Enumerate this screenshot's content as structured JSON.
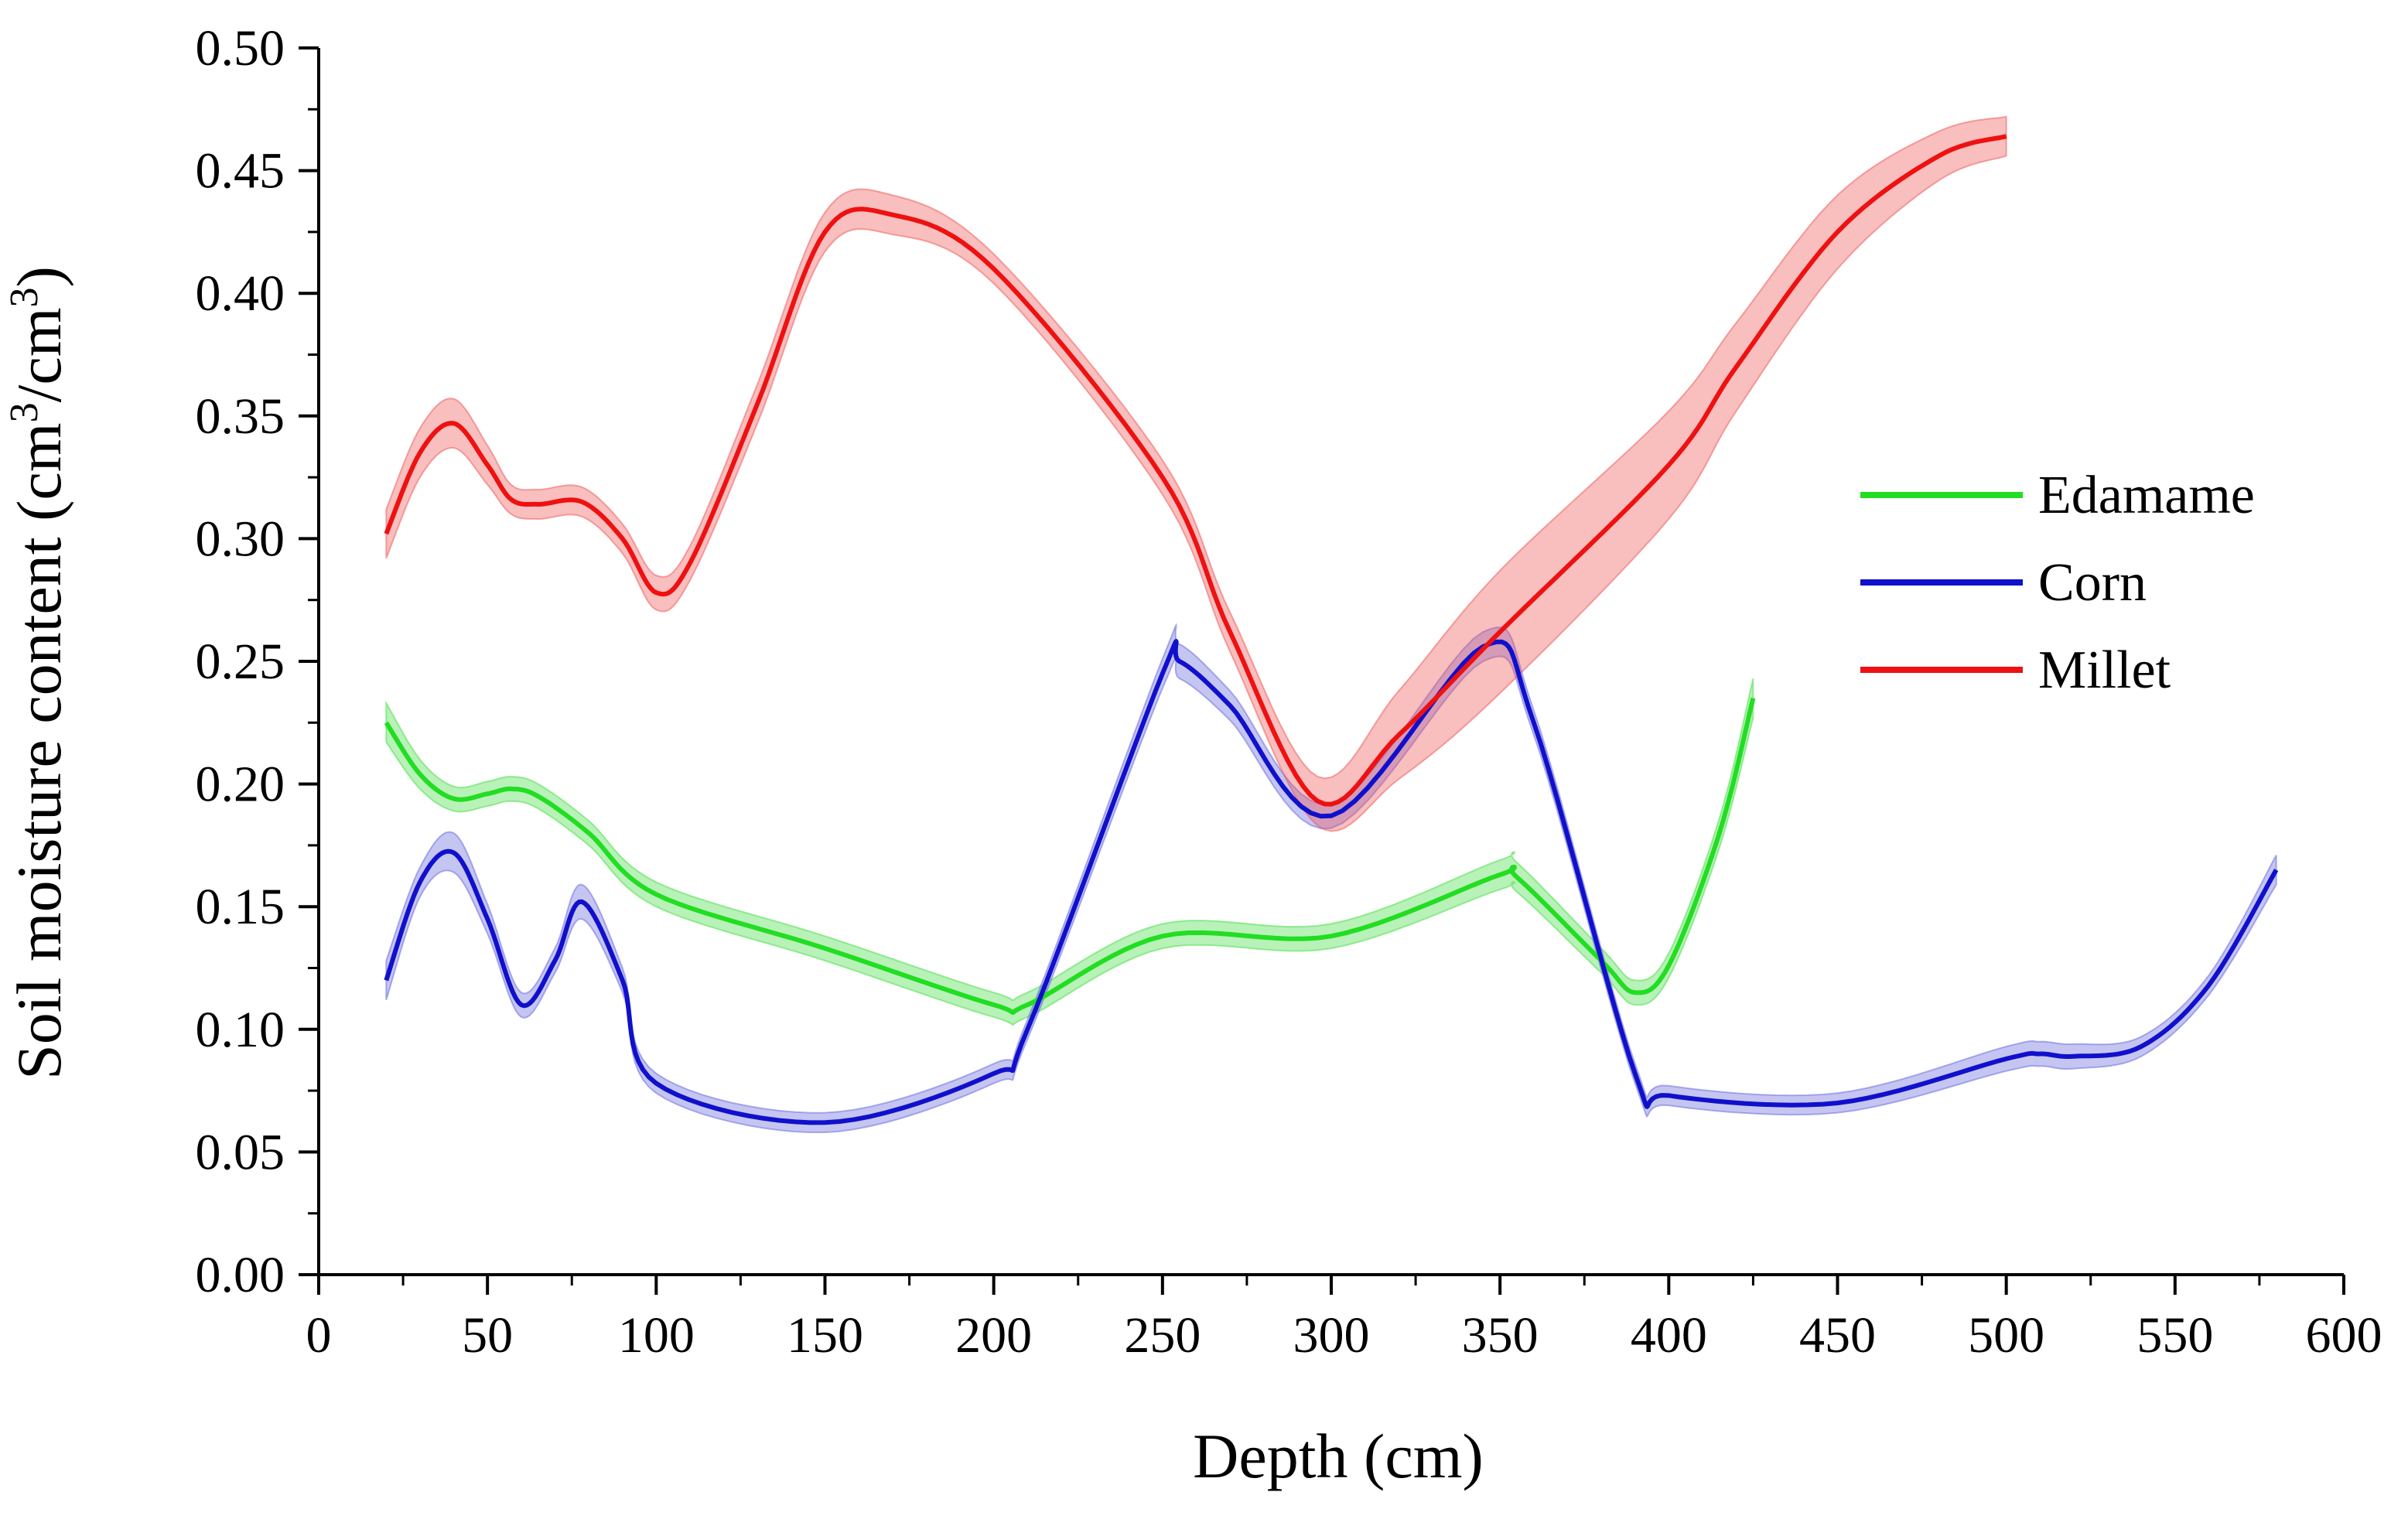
{
  "chart_data": {
    "type": "line",
    "title": "",
    "xlabel": "Depth (cm)",
    "ylabel": "Soil moisture content (cm³/cm³)",
    "ylabel_parts": {
      "a": "Soil moisture content (cm",
      "sup1": "3",
      "b": "/cm",
      "sup2": "3",
      "c": ")"
    },
    "xlim": [
      0,
      600
    ],
    "ylim": [
      0.0,
      0.5
    ],
    "x_ticks": [
      0,
      50,
      100,
      150,
      200,
      250,
      300,
      350,
      400,
      450,
      500,
      550,
      600
    ],
    "x_tick_labels": [
      "0",
      "50",
      "100",
      "150",
      "200",
      "250",
      "300",
      "350",
      "400",
      "450",
      "500",
      "550",
      "600"
    ],
    "y_ticks": [
      0.0,
      0.05,
      0.1,
      0.15,
      0.2,
      0.25,
      0.3,
      0.35,
      0.4,
      0.45,
      0.5
    ],
    "y_tick_labels": [
      "0.00",
      "0.05",
      "0.10",
      "0.15",
      "0.20",
      "0.25",
      "0.30",
      "0.35",
      "0.40",
      "0.45",
      "0.50"
    ],
    "grid": false,
    "legend_position": "right",
    "series": [
      {
        "name": "Edamame",
        "color": "#22dd22",
        "band_color": "#44dd44",
        "x": [
          20,
          30,
          40,
          50,
          57,
          65,
          80,
          100,
          150,
          200,
          210,
          250,
          300,
          350,
          355,
          380,
          390,
          400,
          415,
          425
        ],
        "y": [
          0.225,
          0.204,
          0.194,
          0.196,
          0.198,
          0.195,
          0.18,
          0.155,
          0.133,
          0.11,
          0.11,
          0.138,
          0.138,
          0.163,
          0.162,
          0.128,
          0.115,
          0.126,
          0.18,
          0.235
        ],
        "err": [
          0.008,
          0.006,
          0.005,
          0.005,
          0.005,
          0.005,
          0.005,
          0.005,
          0.005,
          0.005,
          0.005,
          0.005,
          0.005,
          0.006,
          0.006,
          0.005,
          0.005,
          0.005,
          0.006,
          0.008
        ]
      },
      {
        "name": "Corn",
        "color": "#1010cc",
        "band_color": "#6666dd",
        "x": [
          20,
          30,
          40,
          50,
          60,
          70,
          78,
          90,
          100,
          150,
          200,
          210,
          250,
          255,
          270,
          300,
          345,
          360,
          390,
          400,
          450,
          500,
          510,
          520,
          540,
          560,
          580
        ],
        "y": [
          0.12,
          0.16,
          0.172,
          0.145,
          0.11,
          0.128,
          0.152,
          0.12,
          0.078,
          0.062,
          0.082,
          0.1,
          0.245,
          0.25,
          0.232,
          0.187,
          0.256,
          0.225,
          0.082,
          0.073,
          0.07,
          0.088,
          0.09,
          0.089,
          0.093,
          0.118,
          0.165
        ],
        "err": [
          0.008,
          0.006,
          0.008,
          0.006,
          0.005,
          0.005,
          0.007,
          0.005,
          0.004,
          0.004,
          0.004,
          0.004,
          0.006,
          0.007,
          0.006,
          0.005,
          0.006,
          0.005,
          0.004,
          0.004,
          0.004,
          0.005,
          0.005,
          0.005,
          0.004,
          0.004,
          0.006
        ]
      },
      {
        "name": "Millet",
        "color": "#ee1111",
        "band_color": "#ee5555",
        "x": [
          20,
          30,
          40,
          50,
          57,
          65,
          78,
          90,
          100,
          110,
          130,
          150,
          170,
          200,
          250,
          270,
          296,
          320,
          350,
          400,
          420,
          450,
          480,
          500
        ],
        "y": [
          0.302,
          0.335,
          0.347,
          0.33,
          0.316,
          0.314,
          0.315,
          0.3,
          0.278,
          0.29,
          0.355,
          0.425,
          0.432,
          0.41,
          0.325,
          0.262,
          0.193,
          0.22,
          0.262,
          0.33,
          0.37,
          0.425,
          0.456,
          0.464
        ],
        "err": [
          0.01,
          0.01,
          0.01,
          0.008,
          0.006,
          0.006,
          0.006,
          0.006,
          0.007,
          0.007,
          0.008,
          0.008,
          0.008,
          0.006,
          0.007,
          0.008,
          0.01,
          0.018,
          0.025,
          0.022,
          0.018,
          0.015,
          0.01,
          0.008
        ]
      }
    ]
  }
}
